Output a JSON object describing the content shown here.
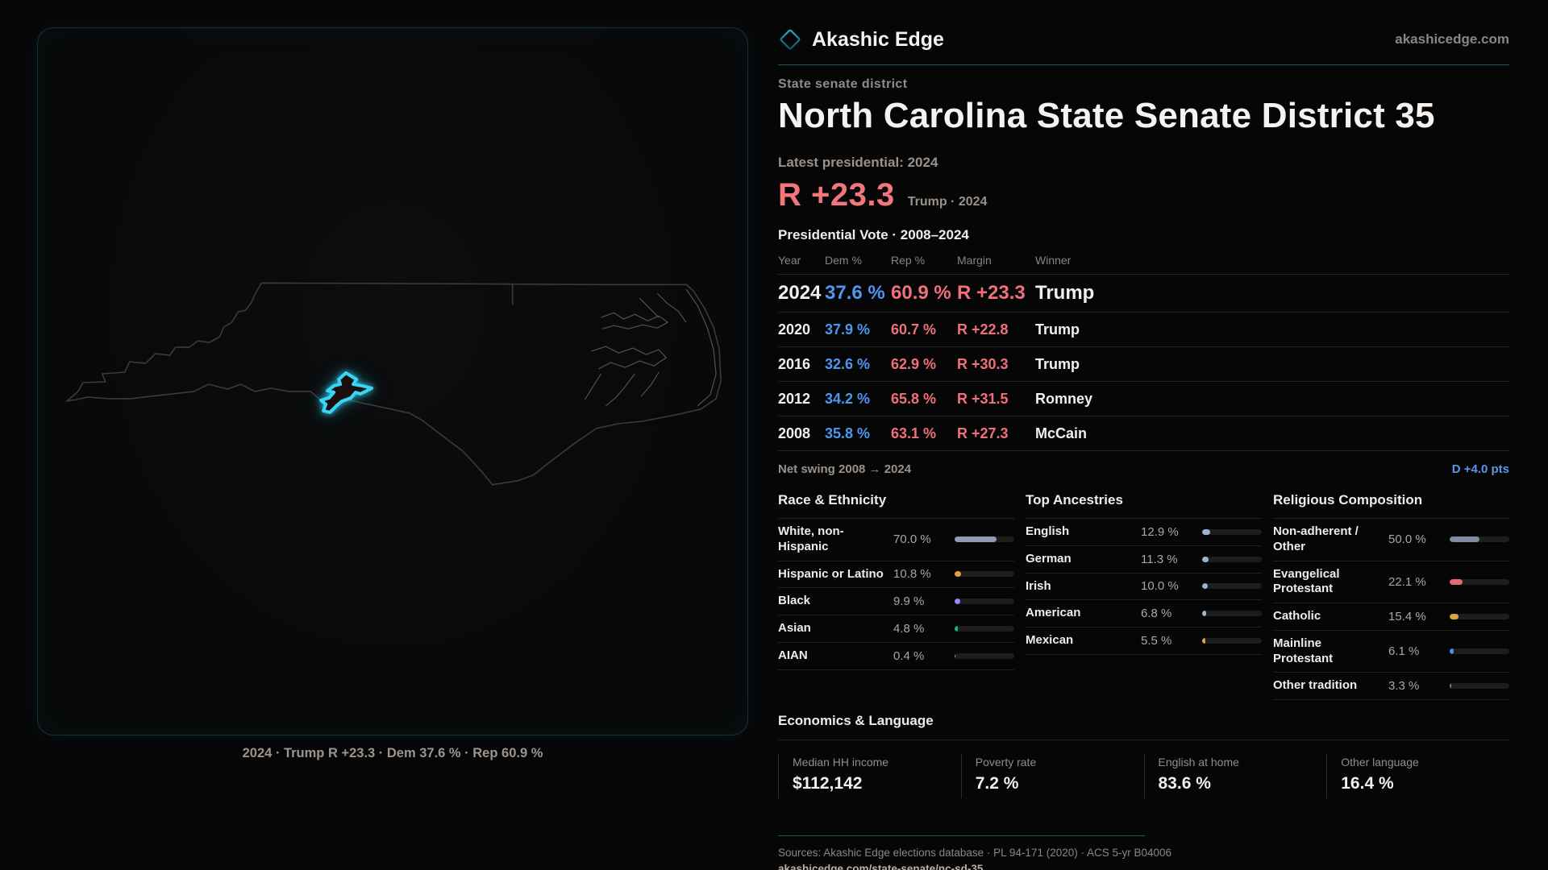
{
  "brand": {
    "logo_icon": "diamond-icon",
    "name": "Akashic Edge",
    "domain": "akashicedge.com"
  },
  "header": {
    "kicker": "State senate district",
    "title": "North Carolina State Senate District 35",
    "latest_label": "Latest presidential: 2024",
    "headline_margin": "R +23.3",
    "headline_context": "Trump · 2024"
  },
  "map": {
    "state": "North Carolina",
    "district_highlight_color": "#38d6f4",
    "caption": "2024 · Trump R +23.3 · Dem 37.6 % · Rep 60.9 %"
  },
  "vote_table": {
    "title": "Presidential Vote · 2008–2024",
    "columns": [
      "Year",
      "Dem %",
      "Rep %",
      "Margin",
      "Winner"
    ],
    "dem_color": "#4f96f0",
    "rep_color": "#f0707a",
    "rows": [
      {
        "year": "2024",
        "dem": "37.6 %",
        "rep": "60.9 %",
        "margin": "R +23.3",
        "winner": "Trump",
        "highlight": true
      },
      {
        "year": "2020",
        "dem": "37.9 %",
        "rep": "60.7 %",
        "margin": "R +22.8",
        "winner": "Trump",
        "highlight": false
      },
      {
        "year": "2016",
        "dem": "32.6 %",
        "rep": "62.9 %",
        "margin": "R +30.3",
        "winner": "Trump",
        "highlight": false
      },
      {
        "year": "2012",
        "dem": "34.2 %",
        "rep": "65.8 %",
        "margin": "R +31.5",
        "winner": "Romney",
        "highlight": false
      },
      {
        "year": "2008",
        "dem": "35.8 %",
        "rep": "63.1 %",
        "margin": "R +27.3",
        "winner": "McCain",
        "highlight": false
      }
    ]
  },
  "net_swing": {
    "label": "Net swing 2008 → 2024",
    "value": "D +4.0 pts",
    "value_color": "#5b96e8"
  },
  "demographics": {
    "race": {
      "title": "Race & Ethnicity",
      "rows": [
        {
          "label": "White, non-Hispanic",
          "value": "70.0 %",
          "pct": 70.0,
          "color": "#8d9cb3"
        },
        {
          "label": "Hispanic or Latino",
          "value": "10.8 %",
          "pct": 10.8,
          "color": "#dfa144"
        },
        {
          "label": "Black",
          "value": "9.9 %",
          "pct": 9.9,
          "color": "#9289f2"
        },
        {
          "label": "Asian",
          "value": "4.8 %",
          "pct": 4.8,
          "color": "#15b488"
        },
        {
          "label": "AIAN",
          "value": "0.4 %",
          "pct": 0.4,
          "color": "#8d9cb3"
        }
      ]
    },
    "ancestry": {
      "title": "Top Ancestries",
      "rows": [
        {
          "label": "English",
          "value": "12.9 %",
          "pct": 12.9,
          "color": "#9db3cf"
        },
        {
          "label": "German",
          "value": "11.3 %",
          "pct": 11.3,
          "color": "#9db3cf"
        },
        {
          "label": "Irish",
          "value": "10.0 %",
          "pct": 10.0,
          "color": "#9db3cf"
        },
        {
          "label": "American",
          "value": "6.8 %",
          "pct": 6.8,
          "color": "#9db3cf"
        },
        {
          "label": "Mexican",
          "value": "5.5 %",
          "pct": 5.5,
          "color": "#dfa144"
        }
      ]
    },
    "religion": {
      "title": "Religious Composition",
      "rows": [
        {
          "label": "Non-adherent / Other",
          "value": "50.0 %",
          "pct": 50.0,
          "color": "#7e8ba0"
        },
        {
          "label": "Evangelical Protestant",
          "value": "22.1 %",
          "pct": 22.1,
          "color": "#e26a76"
        },
        {
          "label": "Catholic",
          "value": "15.4 %",
          "pct": 15.4,
          "color": "#d9a53a"
        },
        {
          "label": "Mainline Protestant",
          "value": "6.1 %",
          "pct": 6.1,
          "color": "#4a90e8"
        },
        {
          "label": "Other tradition",
          "value": "3.3 %",
          "pct": 3.3,
          "color": "#7a7a7a"
        }
      ]
    }
  },
  "economics": {
    "title": "Economics & Language",
    "stats": [
      {
        "label": "Median HH income",
        "value": "$112,142"
      },
      {
        "label": "Poverty rate",
        "value": "7.2 %"
      },
      {
        "label": "English at home",
        "value": "83.6 %"
      },
      {
        "label": "Other language",
        "value": "16.4 %"
      }
    ]
  },
  "footer": {
    "sources": "Sources: Akashic Edge elections database · PL 94-171 (2020) · ACS 5-yr B04006",
    "url": "akashicedge.com/state-senate/nc-sd-35"
  }
}
